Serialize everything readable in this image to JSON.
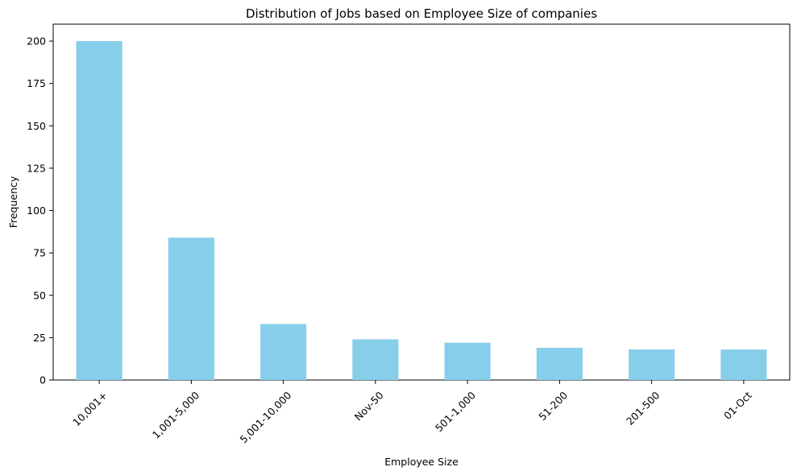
{
  "chart_data": {
    "type": "bar",
    "title": "Distribution of Jobs based on Employee Size of companies",
    "xlabel": "Employee Size",
    "ylabel": "Frequency",
    "categories": [
      "10,001+",
      "1,001-5,000",
      "5,001-10,000",
      "Nov-50",
      "501-1,000",
      "51-200",
      "201-500",
      "01-Oct"
    ],
    "values": [
      200,
      84,
      33,
      24,
      22,
      19,
      18,
      18
    ],
    "ylim": [
      0,
      210
    ],
    "yticks": [
      0,
      25,
      50,
      75,
      100,
      125,
      150,
      175,
      200
    ],
    "bar_color": "#87ceeb",
    "grid": false,
    "legend": "none"
  }
}
